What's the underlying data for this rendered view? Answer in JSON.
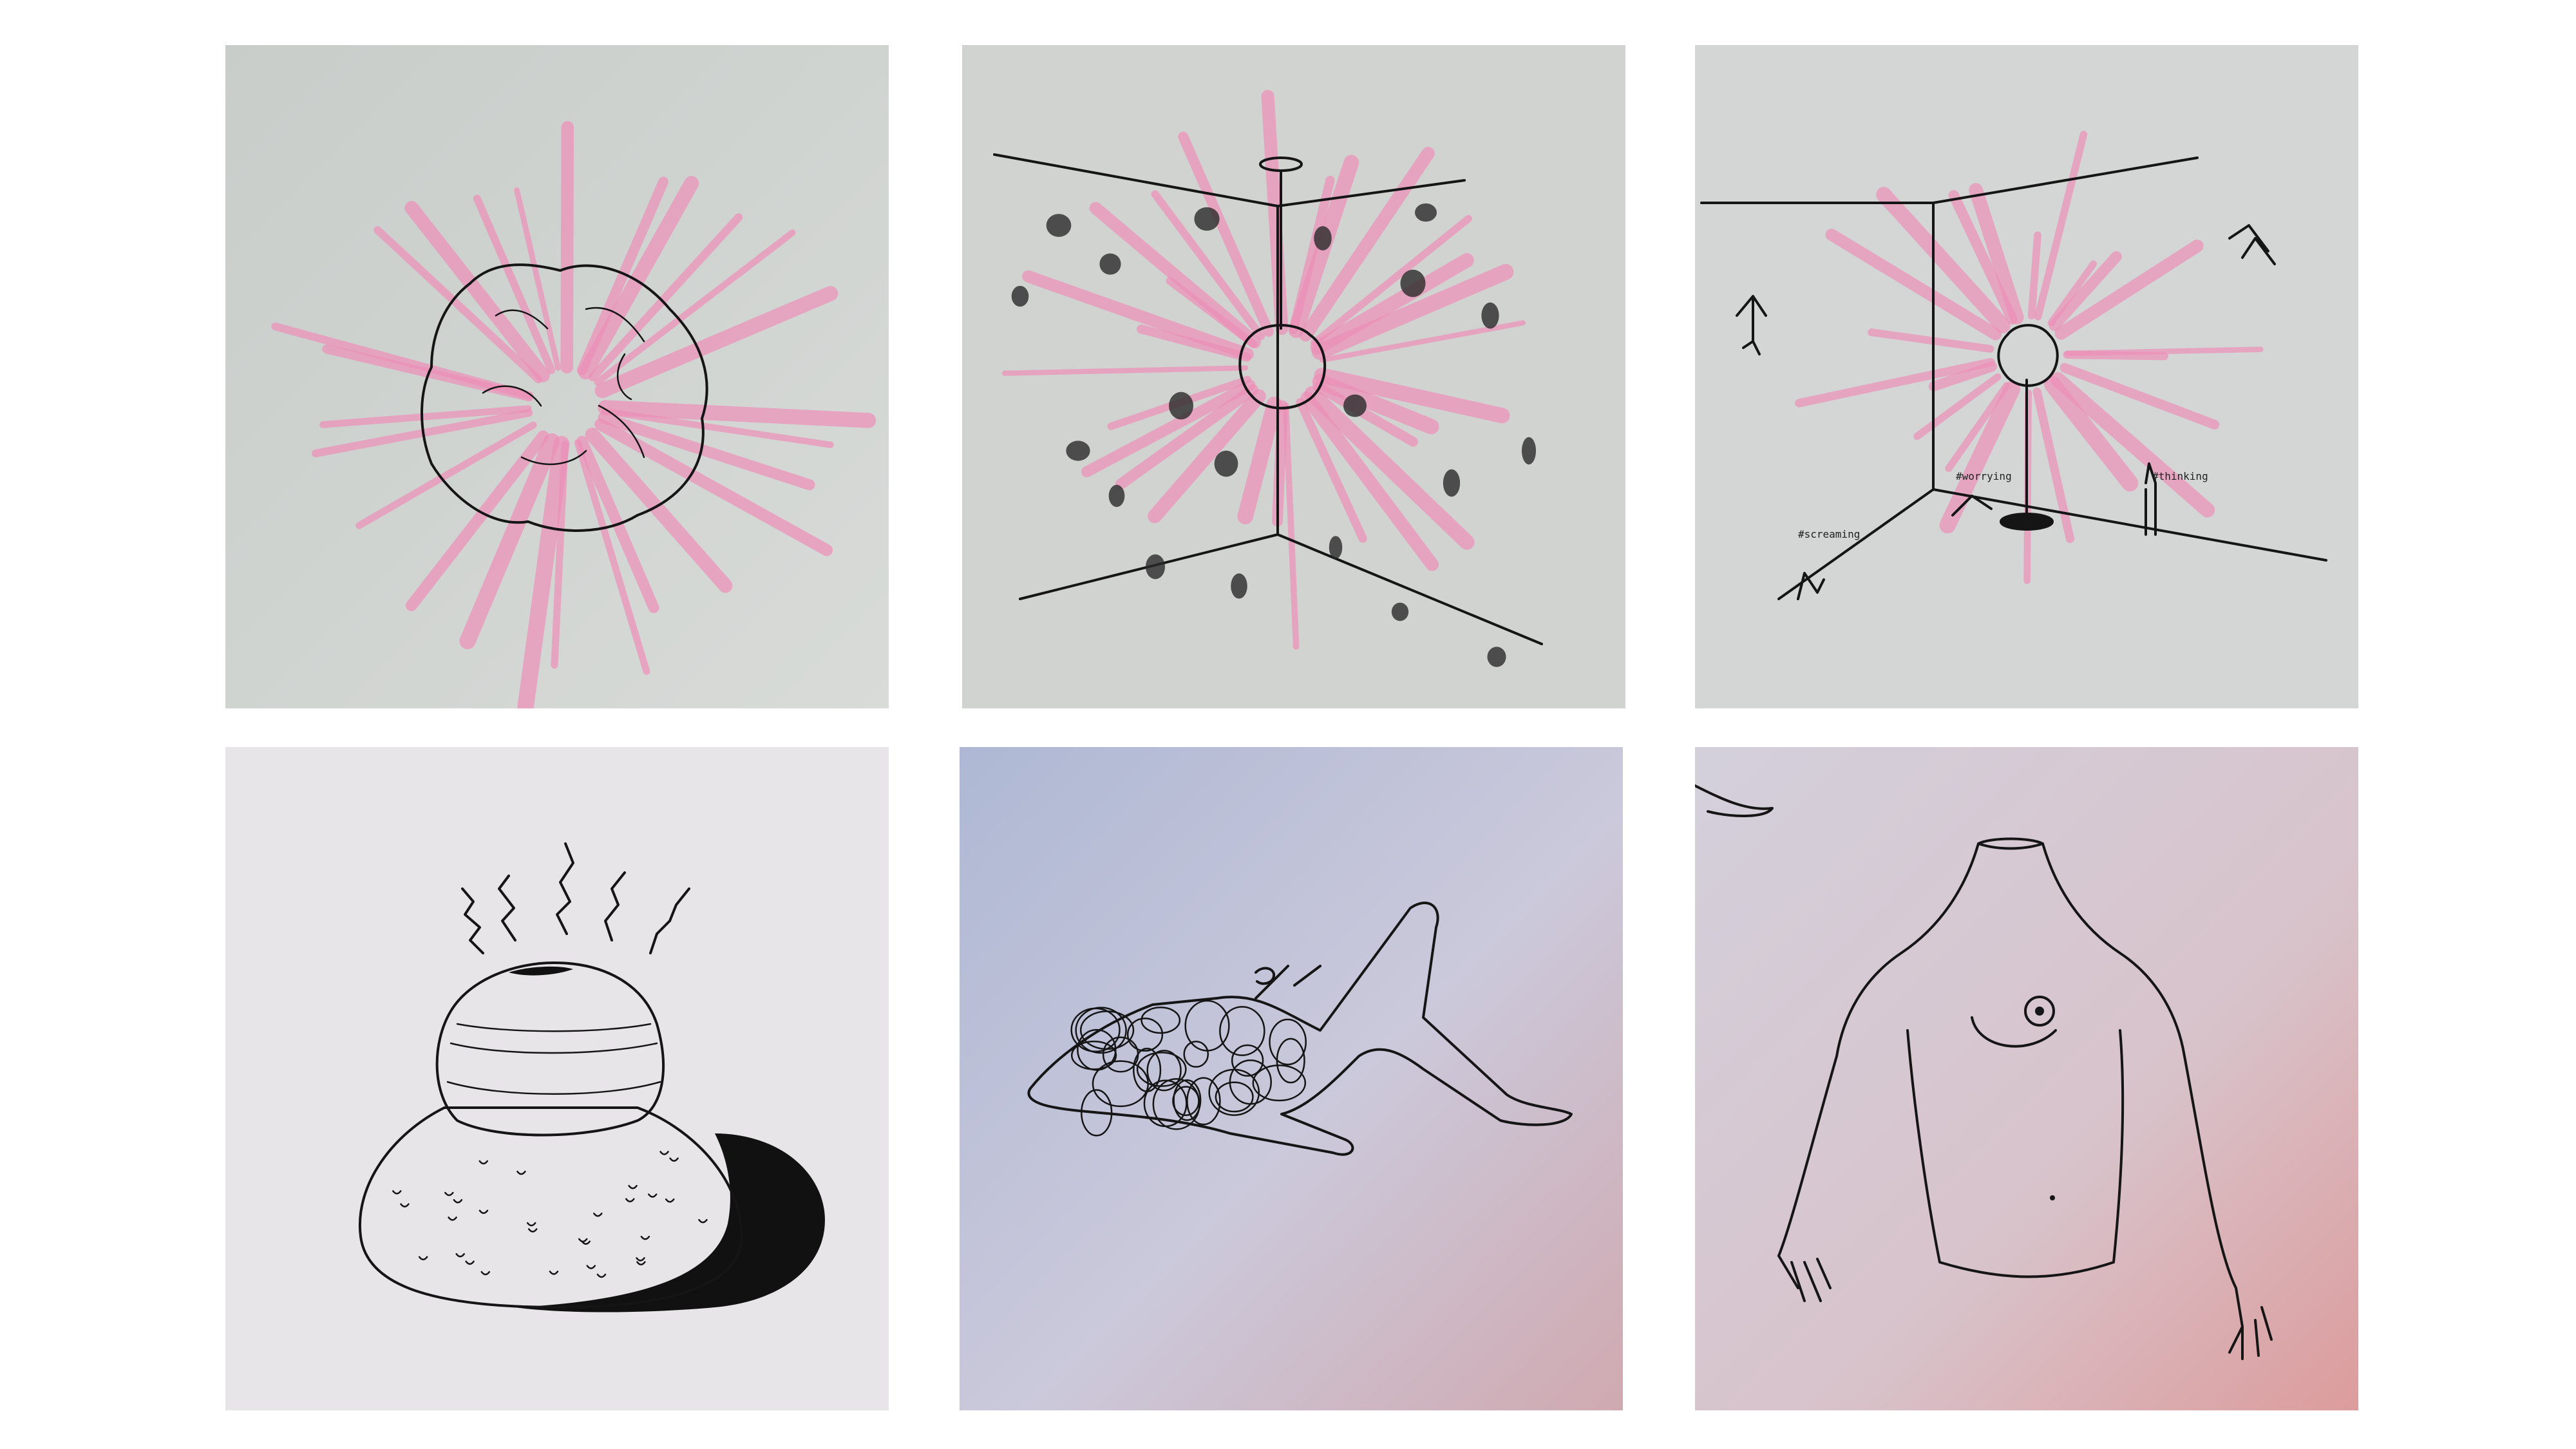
{
  "panels": [
    {
      "id": "p1",
      "paper": "#cfd3d0"
    },
    {
      "id": "p2",
      "paper": "#d0d2cf"
    },
    {
      "id": "p3",
      "paper": "#d2d5d3"
    },
    {
      "id": "p4",
      "paper": "#e6e4e6"
    },
    {
      "id": "p5",
      "paper": "#c9cbdc"
    },
    {
      "id": "p6",
      "paper": "#d9d2da"
    }
  ],
  "notes": {
    "worrying": "#worrying",
    "thinking": "#thinking",
    "screaming": "#screaming"
  },
  "colors": {
    "ink": "#151515",
    "pink": "#ee8fb8",
    "background": "#ffffff"
  }
}
